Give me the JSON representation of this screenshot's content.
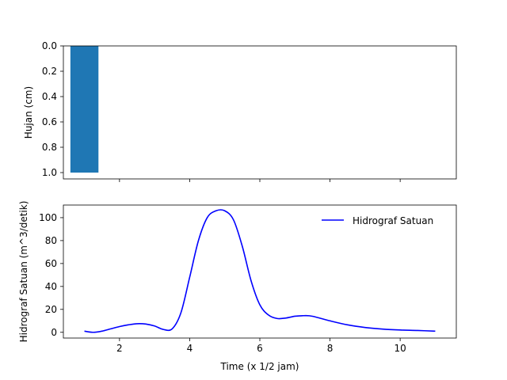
{
  "chart_data": [
    {
      "type": "bar",
      "ylabel": "Hujan (cm)",
      "ylim": [
        0,
        1.05
      ],
      "y_inverted": true,
      "xlim": [
        0.4,
        11.6
      ],
      "yticks": [
        0.0,
        0.2,
        0.4,
        0.6,
        0.8,
        1.0
      ],
      "ytick_labels": [
        "0.0",
        "0.2",
        "0.4",
        "0.6",
        "0.8",
        "1.0"
      ],
      "xticks": [
        2,
        4,
        6,
        8,
        10
      ],
      "show_xtick_labels": false,
      "bars": [
        {
          "x": 1,
          "value": 1.0,
          "width": 0.8
        }
      ],
      "bar_color": "#1f77b4",
      "grid": false
    },
    {
      "type": "line",
      "xlabel": "Time (x 1/2 jam)",
      "ylabel": "Hidrograf Satuan (m^3/detik)",
      "xlim": [
        0.4,
        11.6
      ],
      "ylim": [
        -5,
        111
      ],
      "xticks": [
        2,
        4,
        6,
        8,
        10
      ],
      "xtick_labels": [
        "2",
        "4",
        "6",
        "8",
        "10"
      ],
      "yticks": [
        0,
        20,
        40,
        60,
        80,
        100
      ],
      "ytick_labels": [
        "0",
        "20",
        "40",
        "60",
        "80",
        "100"
      ],
      "legend_position": "top-right",
      "grid": false,
      "series": [
        {
          "name": "Hidrograf Satuan",
          "color": "#0000ff",
          "x": [
            1.0,
            1.25,
            1.5,
            1.75,
            2.0,
            2.25,
            2.5,
            2.75,
            3.0,
            3.25,
            3.5,
            3.75,
            4.0,
            4.25,
            4.5,
            4.75,
            5.0,
            5.25,
            5.5,
            5.75,
            6.0,
            6.25,
            6.5,
            6.75,
            7.0,
            7.25,
            7.5,
            8.0,
            8.5,
            9.0,
            9.5,
            10.0,
            10.5,
            11.0
          ],
          "y": [
            1.0,
            0.0,
            1.0,
            3.0,
            5.0,
            6.5,
            7.5,
            7.2,
            5.5,
            2.5,
            3.0,
            17.0,
            48.0,
            80.0,
            100.0,
            106.0,
            106.0,
            98.0,
            75.0,
            45.0,
            24.0,
            15.0,
            12.0,
            12.5,
            14.0,
            14.5,
            14.0,
            10.0,
            6.5,
            4.2,
            2.8,
            2.0,
            1.6,
            1.0
          ]
        }
      ]
    }
  ]
}
